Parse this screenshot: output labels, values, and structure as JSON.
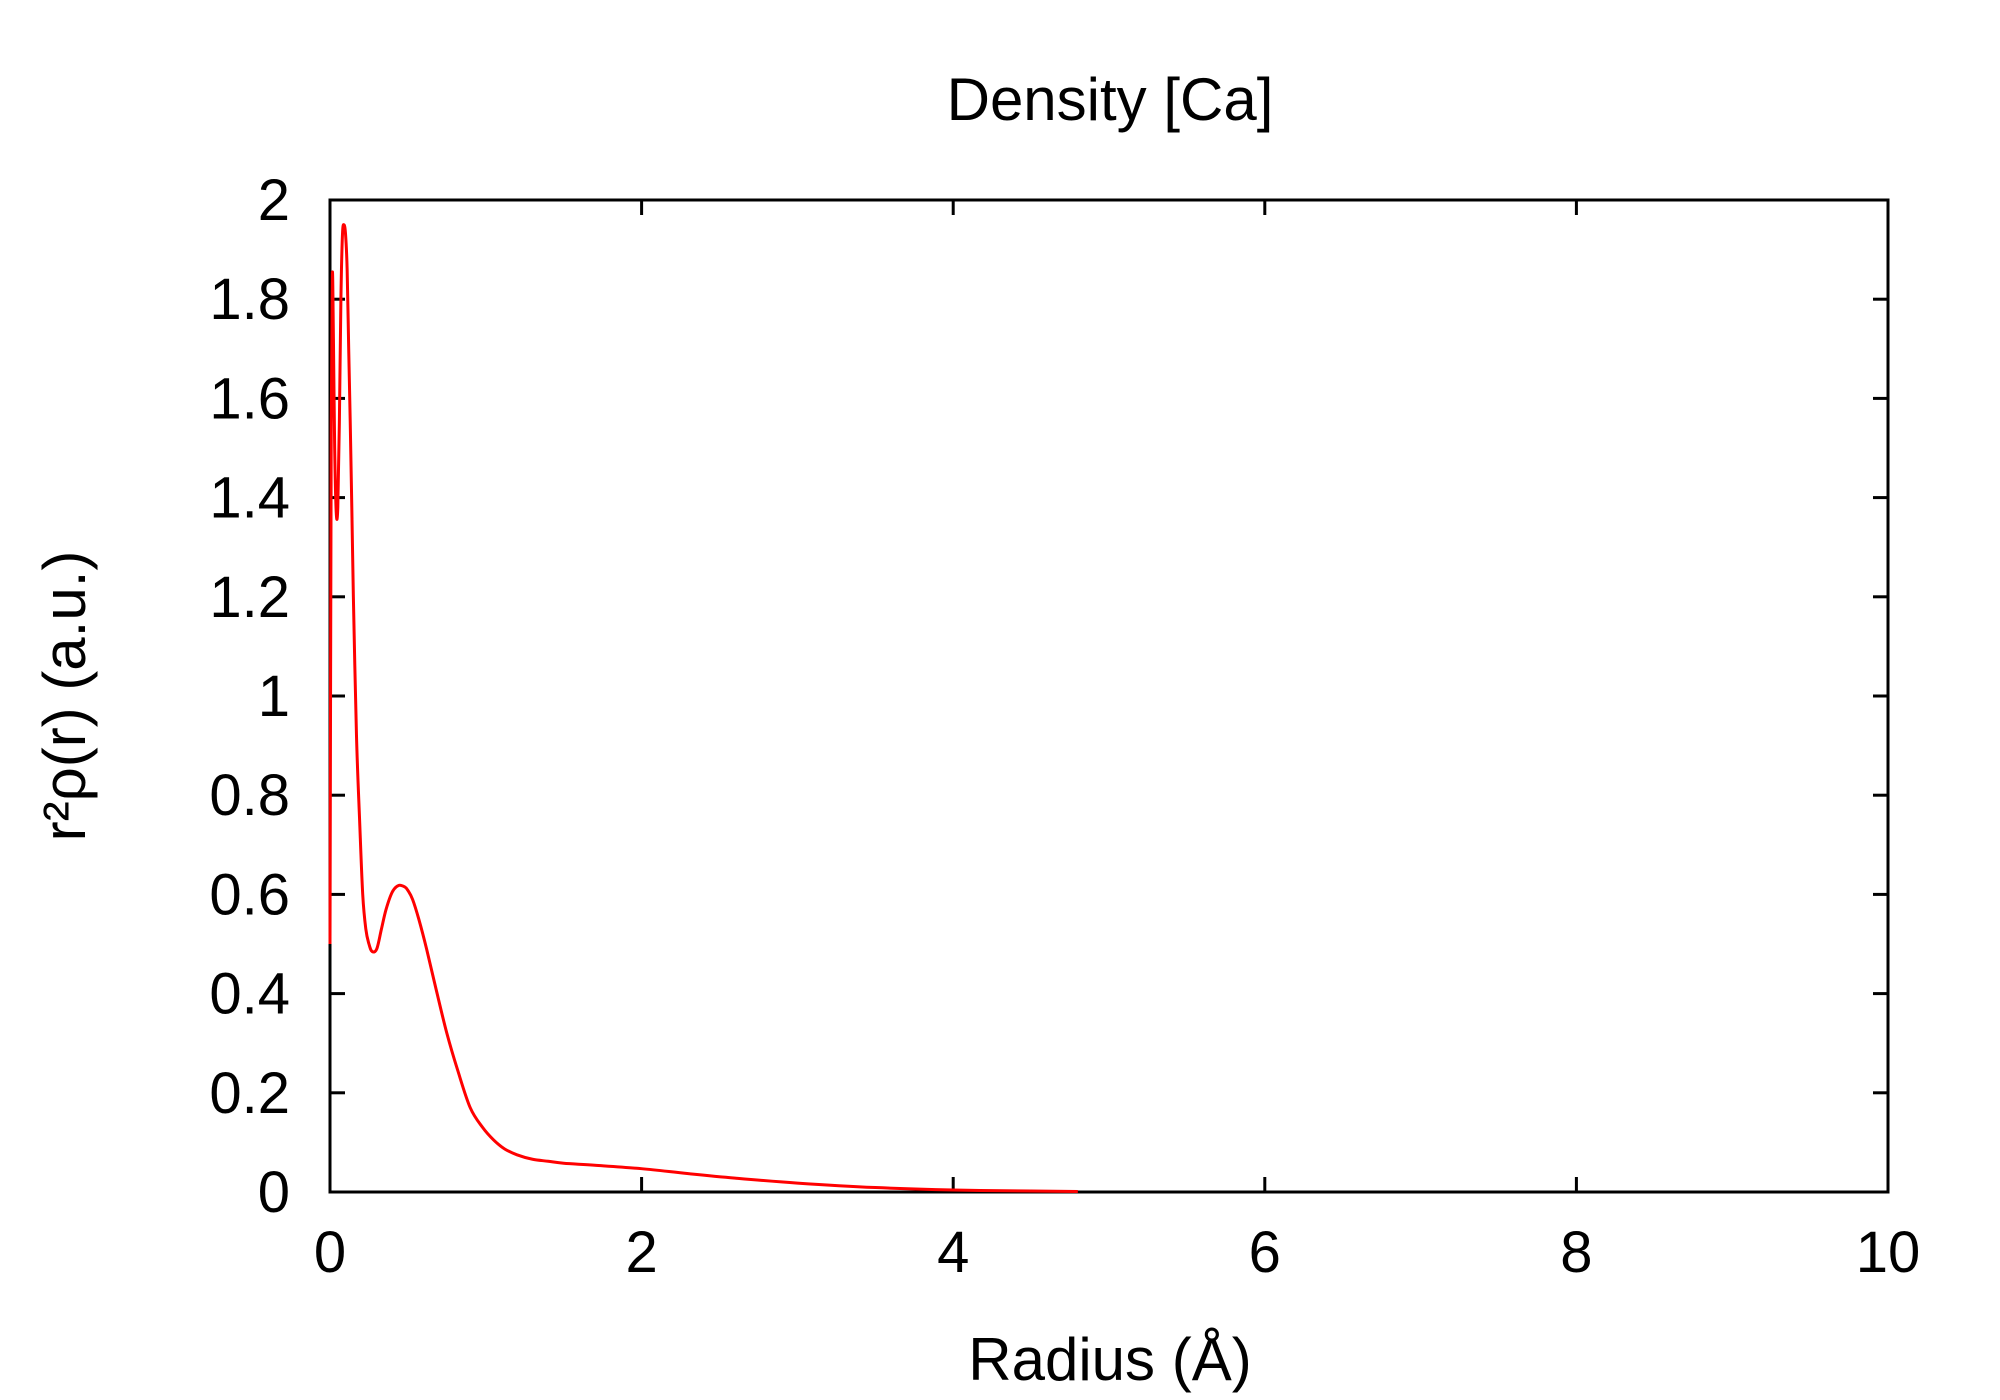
{
  "chart_data": {
    "type": "line",
    "title": "Density [Ca]",
    "xlabel": "Radius (Å)",
    "ylabel": "r²ρ(r) (a.u.)",
    "xlim": [
      0,
      10
    ],
    "ylim": [
      0,
      2
    ],
    "x_ticks": [
      0,
      2,
      4,
      6,
      8,
      10
    ],
    "y_ticks": [
      0,
      0.2,
      0.4,
      0.6,
      0.8,
      1,
      1.2,
      1.4,
      1.6,
      1.8,
      2
    ],
    "x_tick_labels": [
      "0",
      "2",
      "4",
      "6",
      "8",
      "10"
    ],
    "y_tick_labels": [
      "0",
      "0.2",
      "0.4",
      "0.6",
      "0.8",
      "1",
      "1.2",
      "1.4",
      "1.6",
      "1.8",
      "2"
    ],
    "grid": false,
    "legend": "none",
    "series": [
      {
        "color": "#ff0000",
        "x": [
          0.0,
          0.008,
          0.015,
          0.022,
          0.03,
          0.04,
          0.05,
          0.06,
          0.07,
          0.08,
          0.09,
          0.1,
          0.11,
          0.12,
          0.13,
          0.14,
          0.15,
          0.17,
          0.19,
          0.21,
          0.23,
          0.25,
          0.27,
          0.3,
          0.33,
          0.36,
          0.4,
          0.44,
          0.48,
          0.5,
          0.53,
          0.57,
          0.62,
          0.68,
          0.75,
          0.82,
          0.9,
          0.98,
          1.05,
          1.12,
          1.2,
          1.3,
          1.4,
          1.5,
          1.7,
          2.0,
          2.3,
          2.6,
          3.0,
          3.5,
          4.0,
          4.5,
          4.8
        ],
        "y": [
          0.5,
          1.55,
          1.85,
          1.72,
          1.5,
          1.37,
          1.38,
          1.55,
          1.8,
          1.93,
          1.95,
          1.93,
          1.86,
          1.7,
          1.55,
          1.38,
          1.2,
          0.92,
          0.75,
          0.6,
          0.53,
          0.5,
          0.485,
          0.49,
          0.53,
          0.57,
          0.605,
          0.618,
          0.615,
          0.608,
          0.59,
          0.55,
          0.49,
          0.41,
          0.32,
          0.245,
          0.17,
          0.13,
          0.105,
          0.087,
          0.075,
          0.066,
          0.062,
          0.058,
          0.054,
          0.047,
          0.037,
          0.028,
          0.018,
          0.009,
          0.004,
          0.002,
          0.001
        ]
      }
    ]
  }
}
